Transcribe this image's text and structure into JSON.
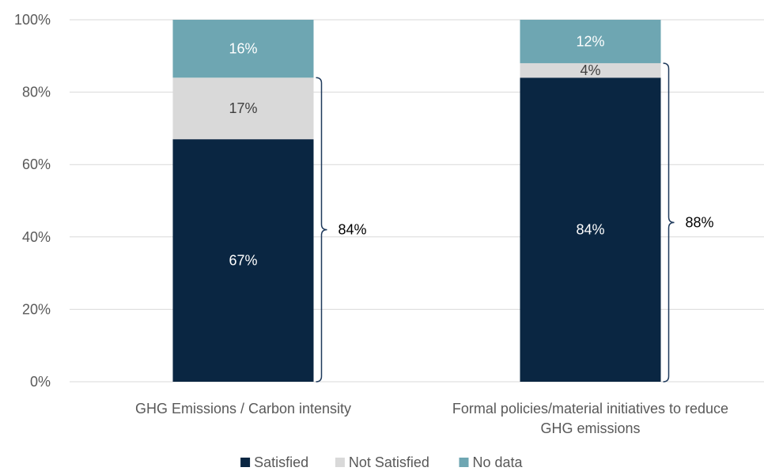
{
  "chart_data": {
    "type": "bar",
    "stacked": true,
    "categories": [
      [
        "GHG Emissions / Carbon intensity"
      ],
      [
        "Formal policies/material initiatives to reduce",
        "GHG emissions"
      ]
    ],
    "series": [
      {
        "name": "Satisfied",
        "values": [
          67,
          84
        ],
        "labels": [
          "67%",
          "84%"
        ]
      },
      {
        "name": "Not Satisfied",
        "values": [
          17,
          4
        ],
        "labels": [
          "17%",
          "4%"
        ]
      },
      {
        "name": "No data",
        "values": [
          16,
          12
        ],
        "labels": [
          "16%",
          "12%"
        ]
      }
    ],
    "brackets": [
      {
        "category": 0,
        "from": 0,
        "to": 84,
        "label": "84%"
      },
      {
        "category": 1,
        "from": 0,
        "to": 88,
        "label": "88%"
      }
    ],
    "y_ticks": [
      "0%",
      "20%",
      "40%",
      "60%",
      "80%",
      "100%"
    ],
    "ylim": [
      0,
      100
    ],
    "grid": true,
    "legend_position": "bottom",
    "colors": {
      "Satisfied": "#0a2642",
      "Not Satisfied": "#d9d9d9",
      "No data": "#6ea6b2",
      "grid": "#d9d9d9",
      "axis_text": "#595959"
    },
    "label_colors": {
      "Satisfied": "#ffffff",
      "Not Satisfied": "#404040",
      "No data": "#ffffff"
    }
  }
}
